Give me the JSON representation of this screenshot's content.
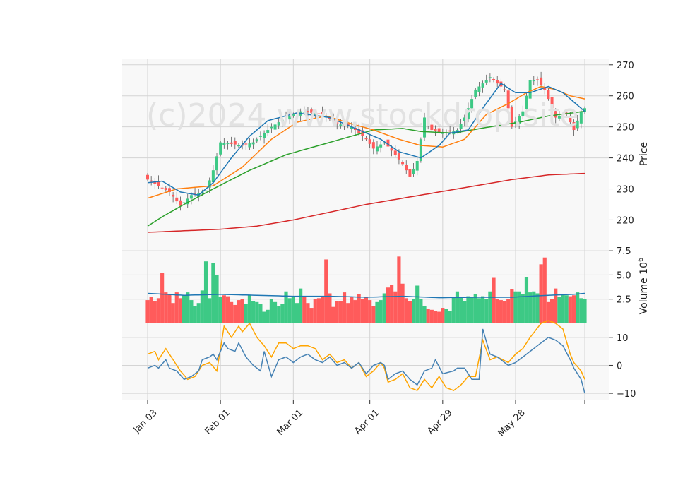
{
  "chart_data": {
    "type": "candlestick",
    "watermark": "(c)2024 www.stockdrop.site",
    "colors": {
      "up": "#3dc985",
      "down": "#ff5b5b",
      "ma_fast": "#1f77b4",
      "ma_mid": "#ff7f0e",
      "ma_slow": "#2ca02c",
      "ma_long": "#d62728",
      "signal": "#ffa500",
      "macd": "#4682b4",
      "panel_bg": "#f8f8f8",
      "grid": "#d4d4d4"
    },
    "x_tick_labels": [
      "Jan 03",
      "Feb 01",
      "Mar 01",
      "Apr 01",
      "Apr 29",
      "May 28"
    ],
    "price_panel": {
      "ylabel": "Price",
      "ylim": [
        211,
        272
      ],
      "yticks": [
        220,
        230,
        240,
        250,
        260,
        270
      ],
      "ytick_labels": [
        "220",
        "230",
        "240",
        "250",
        "260",
        "270"
      ],
      "keys": [
        [
          0,
          233
        ],
        [
          6,
          229
        ],
        [
          9,
          224.5
        ],
        [
          12,
          228
        ],
        [
          16,
          229.5
        ],
        [
          18,
          236
        ],
        [
          20,
          245
        ],
        [
          26,
          244
        ],
        [
          29,
          245
        ],
        [
          34,
          250
        ],
        [
          38,
          253
        ],
        [
          42,
          255
        ],
        [
          48,
          254
        ],
        [
          52,
          251
        ],
        [
          56,
          250
        ],
        [
          60,
          246
        ],
        [
          62,
          243
        ],
        [
          65,
          245
        ],
        [
          68,
          241
        ],
        [
          70,
          238
        ],
        [
          72,
          234
        ],
        [
          74,
          239
        ],
        [
          76,
          253
        ],
        [
          78,
          249
        ],
        [
          81,
          248
        ],
        [
          85,
          249
        ],
        [
          87,
          253
        ],
        [
          90,
          262
        ],
        [
          94,
          266
        ],
        [
          98,
          262
        ],
        [
          100,
          250
        ],
        [
          103,
          255
        ],
        [
          105,
          265
        ],
        [
          107,
          265
        ],
        [
          109,
          262
        ],
        [
          112,
          253
        ],
        [
          115,
          254
        ],
        [
          117,
          249
        ],
        [
          119,
          255
        ],
        [
          120,
          256
        ]
      ],
      "ma_fast_keys": [
        [
          0,
          232
        ],
        [
          4,
          232.5
        ],
        [
          9,
          229
        ],
        [
          14,
          228
        ],
        [
          18,
          232
        ],
        [
          23,
          240
        ],
        [
          28,
          247
        ],
        [
          33,
          252
        ],
        [
          41,
          254.5
        ],
        [
          50,
          253
        ],
        [
          58,
          249
        ],
        [
          64,
          246
        ],
        [
          69,
          242
        ],
        [
          75,
          240
        ],
        [
          80,
          244
        ],
        [
          83,
          248
        ],
        [
          88,
          249
        ],
        [
          92,
          256
        ],
        [
          97,
          264
        ],
        [
          101,
          261
        ],
        [
          105,
          261
        ],
        [
          110,
          263
        ],
        [
          114,
          261
        ],
        [
          118,
          257
        ],
        [
          120,
          255
        ]
      ],
      "ma_mid_keys": [
        [
          0,
          227
        ],
        [
          8,
          230
        ],
        [
          18,
          231
        ],
        [
          26,
          237
        ],
        [
          34,
          246
        ],
        [
          41,
          251.5
        ],
        [
          49,
          253.5
        ],
        [
          56,
          251
        ],
        [
          62,
          249
        ],
        [
          69,
          246
        ],
        [
          75,
          244
        ],
        [
          81,
          243.5
        ],
        [
          87,
          246
        ],
        [
          93,
          254
        ],
        [
          99,
          257.5
        ],
        [
          104,
          261
        ],
        [
          108,
          263
        ],
        [
          112,
          262
        ],
        [
          116,
          260
        ],
        [
          120,
          259
        ]
      ],
      "ma_slow_keys": [
        [
          0,
          218
        ],
        [
          4,
          221
        ],
        [
          10,
          225
        ],
        [
          18,
          230
        ],
        [
          28,
          236
        ],
        [
          38,
          241
        ],
        [
          50,
          245
        ],
        [
          62,
          249
        ],
        [
          70,
          249.5
        ],
        [
          75,
          248.5
        ],
        [
          84,
          248
        ],
        [
          94,
          250
        ],
        [
          102,
          251.5
        ],
        [
          110,
          253.5
        ],
        [
          120,
          255
        ]
      ],
      "ma_long_keys": [
        [
          0,
          216
        ],
        [
          10,
          216.5
        ],
        [
          20,
          217
        ],
        [
          30,
          218
        ],
        [
          40,
          220
        ],
        [
          50,
          222.5
        ],
        [
          60,
          225
        ],
        [
          70,
          227
        ],
        [
          80,
          229
        ],
        [
          90,
          231
        ],
        [
          100,
          233
        ],
        [
          110,
          234.5
        ],
        [
          120,
          235
        ]
      ]
    },
    "volume_panel": {
      "ylabel": "Volume  10^6",
      "ylim": [
        0,
        7.8
      ],
      "yticks": [
        2.5,
        5.0,
        7.5
      ],
      "ytick_labels": [
        "2.5",
        "5.0",
        "7.5"
      ],
      "volumes_millions": [
        2.4,
        2.7,
        2.3,
        2.6,
        5.2,
        3.2,
        3.0,
        2.1,
        3.2,
        2.6,
        2.9,
        3.2,
        2.4,
        1.8,
        2.1,
        3.4,
        6.4,
        2.6,
        6.2,
        5.0,
        2.7,
        2.9,
        2.8,
        2.2,
        1.9,
        2.4,
        2.5,
        2.0,
        2.9,
        2.3,
        2.2,
        2.0,
        1.2,
        1.4,
        2.5,
        2.2,
        1.8,
        2.0,
        3.3,
        2.6,
        2.8,
        2.1,
        3.6,
        2.8,
        2.1,
        1.6,
        2.5,
        2.6,
        2.8,
        6.6,
        3.1,
        1.7,
        2.3,
        2.3,
        3.2,
        2.1,
        2.7,
        2.4,
        3.0,
        2.5,
        2.7,
        2.4,
        1.8,
        2.2,
        2.4,
        3.1,
        3.7,
        4.0,
        3.3,
        6.9,
        4.1,
        2.6,
        2.3,
        2.5,
        3.9,
        2.5,
        1.8,
        1.5,
        1.4,
        1.3,
        1.2,
        1.6,
        1.5,
        1.3,
        2.7,
        3.3,
        2.7,
        2.3,
        2.8,
        2.7,
        3.0,
        2.6,
        2.8,
        2.5,
        3.3,
        4.7,
        2.5,
        2.4,
        2.3,
        2.5,
        3.5,
        3.3,
        3.3,
        3.0,
        4.8,
        3.2,
        3.3,
        3.1,
        6.1,
        6.8,
        2.2,
        2.5,
        3.6,
        2.7,
        3.0,
        2.9,
        2.8,
        2.9,
        3.2,
        2.6,
        2.5
      ],
      "volume_ma_keys": [
        [
          0,
          3.1
        ],
        [
          10,
          2.9
        ],
        [
          20,
          3.0
        ],
        [
          30,
          2.9
        ],
        [
          40,
          2.8
        ],
        [
          50,
          2.8
        ],
        [
          60,
          2.7
        ],
        [
          70,
          2.8
        ],
        [
          80,
          2.65
        ],
        [
          90,
          2.7
        ],
        [
          100,
          2.7
        ],
        [
          110,
          2.9
        ],
        [
          117,
          3.0
        ],
        [
          120,
          3.1
        ]
      ]
    },
    "macd_panel": {
      "ylim": [
        -12.5,
        15
      ],
      "yticks": [
        -10,
        0,
        10
      ],
      "ytick_labels": [
        "−10",
        "0",
        "10"
      ],
      "macd_keys": [
        [
          0,
          -1
        ],
        [
          2,
          0
        ],
        [
          3,
          -1
        ],
        [
          5,
          2
        ],
        [
          6,
          -1
        ],
        [
          8,
          -2
        ],
        [
          10,
          -5
        ],
        [
          12,
          -4
        ],
        [
          14,
          -2
        ],
        [
          15,
          2
        ],
        [
          17,
          3
        ],
        [
          18,
          4
        ],
        [
          19,
          2
        ],
        [
          21,
          8
        ],
        [
          22,
          6
        ],
        [
          24,
          5
        ],
        [
          25,
          8
        ],
        [
          27,
          3
        ],
        [
          29,
          0
        ],
        [
          31,
          -2
        ],
        [
          32,
          5
        ],
        [
          34,
          -4
        ],
        [
          36,
          2
        ],
        [
          38,
          3
        ],
        [
          40,
          1
        ],
        [
          42,
          3
        ],
        [
          44,
          4
        ],
        [
          46,
          2
        ],
        [
          48,
          1
        ],
        [
          50,
          3
        ],
        [
          52,
          0
        ],
        [
          54,
          1
        ],
        [
          56,
          -1
        ],
        [
          58,
          1
        ],
        [
          60,
          -3
        ],
        [
          62,
          0
        ],
        [
          64,
          1
        ],
        [
          65,
          0
        ],
        [
          66,
          -5
        ],
        [
          68,
          -3
        ],
        [
          70,
          -2
        ],
        [
          72,
          -5
        ],
        [
          74,
          -7
        ],
        [
          76,
          -2
        ],
        [
          78,
          -1
        ],
        [
          79,
          2
        ],
        [
          81,
          -3
        ],
        [
          84,
          -2
        ],
        [
          85,
          -1
        ],
        [
          87,
          -1
        ],
        [
          89,
          -5
        ],
        [
          91,
          -5
        ],
        [
          92,
          13
        ],
        [
          94,
          4
        ],
        [
          96,
          3
        ],
        [
          99,
          0
        ],
        [
          101,
          1
        ],
        [
          103,
          3
        ],
        [
          105,
          5
        ],
        [
          108,
          8
        ],
        [
          110,
          10
        ],
        [
          112,
          9
        ],
        [
          114,
          7
        ],
        [
          116,
          2
        ],
        [
          117,
          -1
        ],
        [
          119,
          -5
        ],
        [
          120,
          -10
        ]
      ],
      "signal_keys": [
        [
          0,
          4
        ],
        [
          2,
          5
        ],
        [
          3,
          2
        ],
        [
          5,
          6
        ],
        [
          7,
          2
        ],
        [
          9,
          -2
        ],
        [
          11,
          -5
        ],
        [
          13,
          -4
        ],
        [
          15,
          0
        ],
        [
          17,
          1
        ],
        [
          19,
          -2
        ],
        [
          21,
          14
        ],
        [
          23,
          10
        ],
        [
          25,
          14
        ],
        [
          26,
          12
        ],
        [
          28,
          15
        ],
        [
          30,
          10
        ],
        [
          32,
          7
        ],
        [
          34,
          3
        ],
        [
          36,
          8
        ],
        [
          38,
          8
        ],
        [
          40,
          6
        ],
        [
          42,
          7
        ],
        [
          44,
          7
        ],
        [
          46,
          6
        ],
        [
          48,
          2
        ],
        [
          50,
          4
        ],
        [
          52,
          1
        ],
        [
          54,
          2
        ],
        [
          56,
          -1
        ],
        [
          58,
          1
        ],
        [
          60,
          -4
        ],
        [
          62,
          -2
        ],
        [
          64,
          1
        ],
        [
          65,
          -1
        ],
        [
          66,
          -6
        ],
        [
          68,
          -5
        ],
        [
          70,
          -3
        ],
        [
          72,
          -8
        ],
        [
          74,
          -9
        ],
        [
          76,
          -5
        ],
        [
          78,
          -8
        ],
        [
          80,
          -4
        ],
        [
          82,
          -8
        ],
        [
          84,
          -9
        ],
        [
          86,
          -7
        ],
        [
          88,
          -4
        ],
        [
          90,
          -4
        ],
        [
          92,
          9
        ],
        [
          94,
          2
        ],
        [
          96,
          3
        ],
        [
          99,
          1
        ],
        [
          101,
          4
        ],
        [
          103,
          6
        ],
        [
          105,
          10
        ],
        [
          108,
          15
        ],
        [
          110,
          16
        ],
        [
          112,
          15
        ],
        [
          114,
          13
        ],
        [
          116,
          4
        ],
        [
          117,
          1
        ],
        [
          119,
          -2
        ],
        [
          120,
          -5
        ]
      ]
    }
  }
}
